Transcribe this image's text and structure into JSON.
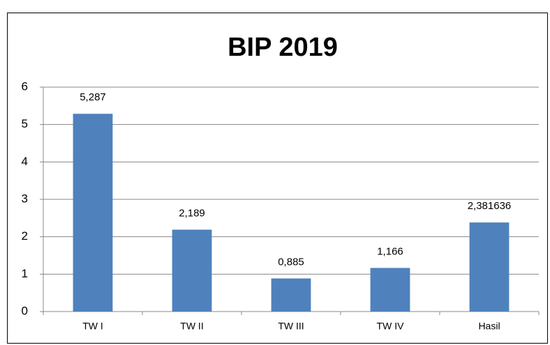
{
  "chart_data": {
    "type": "bar",
    "title": "BIP 2019",
    "categories": [
      "TW I",
      "TW II",
      "TW III",
      "TW IV",
      "Hasil"
    ],
    "values": [
      5.287,
      2.189,
      0.885,
      1.166,
      2.381636
    ],
    "value_labels": [
      "5,287",
      "2,189",
      "0,885",
      "1,166",
      "2,381636"
    ],
    "color": "#4f81bd",
    "ylim": [
      0,
      6
    ],
    "yticks": [
      0,
      1,
      2,
      3,
      4,
      5,
      6
    ],
    "grid": true
  }
}
